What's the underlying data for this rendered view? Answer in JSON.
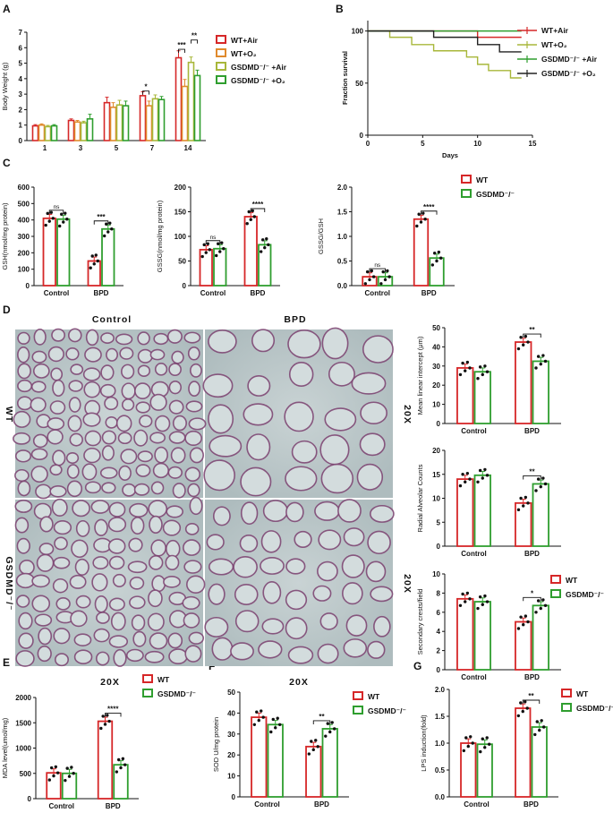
{
  "colors": {
    "red": "#d62728",
    "orange": "#e08a2c",
    "olive": "#a8b73a",
    "green": "#2f9e2f",
    "black": "#222222",
    "tissue": "#b7c4c6"
  },
  "panels": {
    "A": {
      "label": "A",
      "chart_data": {
        "type": "bar",
        "ylabel": "Body Weight (g)",
        "ylim": [
          0,
          7
        ],
        "yticks": [
          "0",
          "1",
          "2",
          "3",
          "4",
          "5",
          "6",
          "7"
        ],
        "categories": [
          "1",
          "3",
          "5",
          "7",
          "14"
        ],
        "series": [
          {
            "name": "WT+Air",
            "color": "#d62728",
            "values": [
              0.95,
              1.3,
              2.45,
              2.9,
              5.35
            ],
            "err": [
              0.08,
              0.1,
              0.35,
              0.25,
              0.45
            ]
          },
          {
            "name": "WT+O₂",
            "color": "#e08a2c",
            "values": [
              1.0,
              1.2,
              2.15,
              2.25,
              3.5
            ],
            "err": [
              0.08,
              0.1,
              0.3,
              0.3,
              0.45
            ]
          },
          {
            "name": "GSDMD⁻/⁻ +Air",
            "color": "#a8b73a",
            "values": [
              0.9,
              1.15,
              2.3,
              2.7,
              5.05
            ],
            "err": [
              0.08,
              0.1,
              0.3,
              0.25,
              0.35
            ]
          },
          {
            "name": "GSDMD⁻/⁻ +O₂",
            "color": "#2f9e2f",
            "values": [
              0.95,
              1.4,
              2.25,
              2.65,
              4.2
            ],
            "err": [
              0.08,
              0.3,
              0.3,
              0.2,
              0.35
            ]
          }
        ],
        "annotations": [
          "*",
          "***",
          "**"
        ]
      }
    },
    "B": {
      "label": "B",
      "chart_data": {
        "type": "line",
        "ylabel": "Fraction survival",
        "xlabel": "Days",
        "xlim": [
          0,
          15
        ],
        "ylim": [
          0,
          110
        ],
        "xticks": [
          "0",
          "5",
          "10",
          "15"
        ],
        "yticks": [
          "0",
          "50",
          "100"
        ],
        "series": [
          {
            "name": "WT+Air",
            "color": "#d62728",
            "x": [
              0,
              10,
              10,
              14
            ],
            "y": [
              100,
              100,
              94,
              94
            ]
          },
          {
            "name": "WT+O₂",
            "color": "#a8b73a",
            "x": [
              0,
              2,
              2,
              4,
              4,
              6,
              6,
              9,
              9,
              10,
              10,
              11,
              11,
              13,
              13,
              14
            ],
            "y": [
              100,
              100,
              94,
              94,
              87,
              87,
              81,
              81,
              75,
              75,
              68,
              68,
              62,
              62,
              55,
              55
            ]
          },
          {
            "name": "GSDMD⁻/⁻ +Air",
            "color": "#2f9e2f",
            "x": [
              0,
              14
            ],
            "y": [
              100,
              100
            ]
          },
          {
            "name": "GSDMD⁻/⁻ +O₂",
            "color": "#222222",
            "x": [
              0,
              6,
              6,
              10,
              10,
              12,
              12,
              14
            ],
            "y": [
              100,
              100,
              94,
              94,
              87,
              87,
              80,
              80
            ]
          }
        ]
      }
    },
    "C": {
      "label": "C",
      "legend": [
        "WT",
        "GSDMD⁻/⁻"
      ],
      "charts": [
        {
          "type": "bar",
          "ylabel": "GSH(nmol/mg protein)",
          "ylim": [
            0,
            600
          ],
          "yticks": [
            "0",
            "100",
            "200",
            "300",
            "400",
            "500",
            "600"
          ],
          "categories": [
            "Control",
            "BPD"
          ],
          "wt": [
            410,
            150
          ],
          "ko": [
            405,
            345
          ],
          "sig": [
            "ns",
            "***"
          ]
        },
        {
          "type": "bar",
          "ylabel": "GSSG(nmol/mg protein)",
          "ylim": [
            0,
            200
          ],
          "yticks": [
            "0",
            "50",
            "100",
            "150",
            "200"
          ],
          "categories": [
            "Control",
            "BPD"
          ],
          "wt": [
            73,
            140
          ],
          "ko": [
            75,
            83
          ],
          "sig": [
            "ns",
            "****"
          ]
        },
        {
          "type": "bar",
          "ylabel": "GSSG/GSH",
          "ylim": [
            0,
            2.0
          ],
          "yticks": [
            "0.0",
            "0.5",
            "1.0",
            "1.5",
            "2.0"
          ],
          "categories": [
            "Control",
            "BPD"
          ],
          "wt": [
            0.18,
            1.35
          ],
          "ko": [
            0.18,
            0.56
          ],
          "sig": [
            "ns",
            "****"
          ]
        }
      ]
    },
    "D": {
      "label": "D",
      "columns": [
        "Control",
        "BPD"
      ],
      "rows": [
        "WT",
        "GSDMD⁻/⁻"
      ],
      "mag": "20X",
      "legend": [
        "WT",
        "GSDMD⁻/⁻"
      ],
      "charts": [
        {
          "type": "bar",
          "ylabel": "Mean linear intercept (μm)",
          "ylim": [
            0,
            50
          ],
          "yticks": [
            "0",
            "10",
            "20",
            "30",
            "40",
            "50"
          ],
          "categories": [
            "Control",
            "BPD"
          ],
          "wt": [
            29,
            42.5
          ],
          "ko": [
            27,
            32.5
          ],
          "sig": [
            "",
            "**"
          ]
        },
        {
          "type": "bar",
          "ylabel": "Radial Alveolar Counts",
          "ylim": [
            0,
            20
          ],
          "yticks": [
            "0",
            "5",
            "10",
            "15",
            "20"
          ],
          "categories": [
            "Control",
            "BPD"
          ],
          "wt": [
            14,
            9
          ],
          "ko": [
            14.8,
            13
          ],
          "sig": [
            "",
            "**"
          ]
        },
        {
          "type": "bar",
          "ylabel": "Secondary crests/field",
          "ylim": [
            0,
            10
          ],
          "yticks": [
            "0",
            "2",
            "4",
            "6",
            "8",
            "10"
          ],
          "categories": [
            "Control",
            "BPD"
          ],
          "wt": [
            7.4,
            5
          ],
          "ko": [
            7.1,
            6.7
          ],
          "sig": [
            "",
            "*"
          ]
        }
      ]
    },
    "E": {
      "label": "E",
      "legend": [
        "WT",
        "GSDMD⁻/⁻"
      ],
      "chart_data": {
        "type": "bar",
        "ylabel": "MDA level(umol/mg)",
        "ylim": [
          0,
          2000
        ],
        "yticks": [
          "0",
          "500",
          "1000",
          "1500",
          "2000"
        ],
        "categories": [
          "Control",
          "BPD"
        ],
        "wt": [
          510,
          1530
        ],
        "ko": [
          500,
          670
        ],
        "sig": [
          "",
          "****"
        ]
      }
    },
    "F": {
      "label": "F",
      "legend": [
        "WT",
        "GSDMD⁻/⁻"
      ],
      "chart_data": {
        "type": "bar",
        "ylabel": "SOD U/mg protein",
        "ylim": [
          0,
          50
        ],
        "yticks": [
          "0",
          "10",
          "20",
          "30",
          "40",
          "50"
        ],
        "categories": [
          "Control",
          "BPD"
        ],
        "wt": [
          38,
          24
        ],
        "ko": [
          34.5,
          32.5
        ],
        "sig": [
          "",
          "**"
        ]
      }
    },
    "G": {
      "label": "G",
      "legend": [
        "WT",
        "GSDMD⁻/⁻"
      ],
      "chart_data": {
        "type": "bar",
        "ylabel": "LPS induction(fold)",
        "ylim": [
          0,
          2.0
        ],
        "yticks": [
          "0.0",
          "0.5",
          "1.0",
          "1.5",
          "2.0"
        ],
        "categories": [
          "Control",
          "BPD"
        ],
        "wt": [
          1.0,
          1.65
        ],
        "ko": [
          0.98,
          1.3
        ],
        "sig": [
          "",
          "**"
        ]
      }
    }
  }
}
